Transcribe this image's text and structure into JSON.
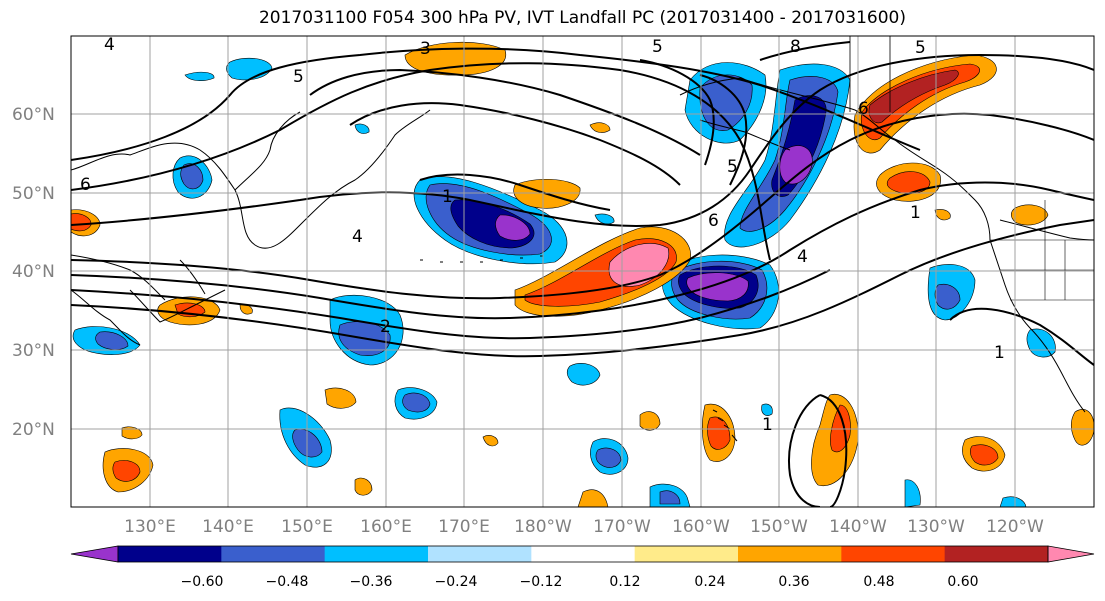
{
  "title": "2017031100 F054 300 hPa PV, IVT Landfall PC (2017031400 - 2017031600)",
  "lat_labels": [
    "60°N",
    "50°N",
    "40°N",
    "30°N",
    "20°N"
  ],
  "lon_labels": [
    "130°E",
    "140°E",
    "150°E",
    "160°E",
    "170°E",
    "180°W",
    "170°W",
    "160°W",
    "150°W",
    "140°W",
    "130°W",
    "120°W"
  ],
  "colorbar": {
    "ticks": [
      "−0.60",
      "−0.48",
      "−0.36",
      "−0.24",
      "−0.12",
      "0.12",
      "0.24",
      "0.36",
      "0.48",
      "0.60"
    ],
    "colors": [
      "#9933cc",
      "#00008b",
      "#3a5fcd",
      "#00bfff",
      "#b0e2ff",
      "#ffffff",
      "#ffeb8a",
      "#ffa500",
      "#ff4500",
      "#b22222",
      "#ff88b0"
    ]
  },
  "contour_labels": [
    "4",
    "3",
    "5",
    "8",
    "5",
    "6",
    "1",
    "4",
    "5",
    "6",
    "4",
    "2",
    "1",
    "1",
    "1",
    "5",
    "6"
  ],
  "colors": {
    "land_line": "#000000",
    "grid": "#a0a0a0",
    "contour": "#000000"
  }
}
